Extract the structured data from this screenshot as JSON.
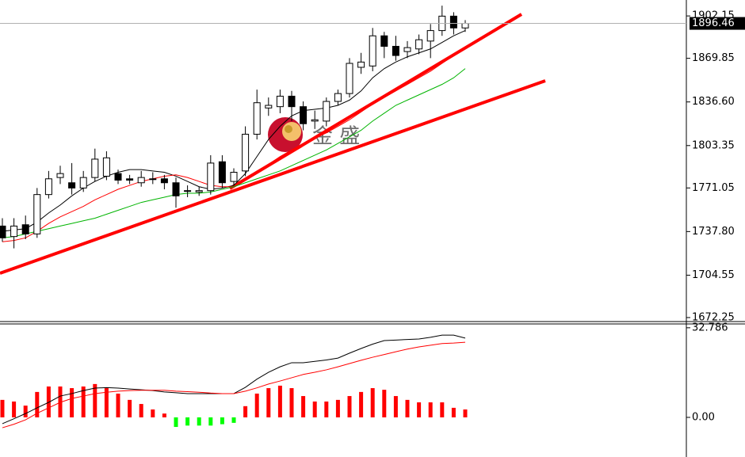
{
  "chart_data": [
    {
      "type": "candlestick",
      "open": [
        1742,
        1734,
        1743,
        1736,
        1766,
        1779,
        1775,
        1771,
        1779,
        1780,
        1782,
        1778,
        1775,
        1778,
        1778,
        1775,
        1769,
        1768,
        1769,
        1791,
        1776,
        1784,
        1812,
        1832,
        1833,
        1841,
        1833,
        1822,
        1822,
        1837,
        1843,
        1863,
        1864,
        1887,
        1879,
        1875,
        1877,
        1883,
        1891,
        1902,
        1893
      ],
      "high": [
        1748,
        1748,
        1750,
        1771,
        1784,
        1788,
        1790,
        1784,
        1801,
        1799,
        1785,
        1781,
        1784,
        1783,
        1781,
        1779,
        1773,
        1772,
        1796,
        1796,
        1786,
        1818,
        1846,
        1840,
        1846,
        1845,
        1837,
        1830,
        1840,
        1846,
        1870,
        1874,
        1893,
        1890,
        1887,
        1883,
        1888,
        1896,
        1910,
        1905,
        1899
      ],
      "low": [
        1730,
        1725,
        1732,
        1733,
        1763,
        1774,
        1766,
        1768,
        1776,
        1777,
        1774,
        1774,
        1772,
        1774,
        1770,
        1756,
        1764,
        1765,
        1766,
        1771,
        1773,
        1780,
        1808,
        1826,
        1828,
        1822,
        1815,
        1816,
        1818,
        1834,
        1840,
        1858,
        1860,
        1870,
        1868,
        1870,
        1873,
        1870,
        1887,
        1888,
        1890
      ],
      "close": [
        1733,
        1742,
        1736,
        1766,
        1778,
        1782,
        1771,
        1779,
        1793,
        1794,
        1777,
        1777,
        1779,
        1778,
        1775,
        1765,
        1769,
        1769,
        1790,
        1775,
        1783,
        1812,
        1836,
        1834,
        1841,
        1833,
        1820,
        1823,
        1837,
        1843,
        1866,
        1867,
        1887,
        1879,
        1872,
        1878,
        1884,
        1891,
        1902,
        1893,
        1896.46
      ],
      "up_color": "#ffffff",
      "down_color": "#000000",
      "series": [
        {
          "color": "#000000",
          "values": [
            1738,
            1739,
            1740,
            1745,
            1752,
            1758,
            1765,
            1771,
            1776,
            1780,
            1783,
            1785,
            1785,
            1784,
            1783,
            1780,
            1776,
            1772,
            1770,
            1771,
            1773,
            1782,
            1795,
            1808,
            1818,
            1826,
            1830,
            1831,
            1832,
            1834,
            1838,
            1845,
            1855,
            1862,
            1867,
            1871,
            1874,
            1877,
            1882,
            1887,
            1891
          ]
        },
        {
          "color": "#ff0000",
          "values": [
            1730,
            1731,
            1733,
            1738,
            1744,
            1749,
            1753,
            1757,
            1762,
            1766,
            1770,
            1773,
            1776,
            1778,
            1780,
            1781,
            1779,
            1776,
            1773,
            1772,
            1772,
            1777,
            1783,
            1789,
            1795,
            1800,
            1805,
            1809,
            1813,
            1818,
            1823,
            1829,
            1835,
            1840,
            1845,
            1850,
            1855,
            1860,
            1866,
            1872,
            1877
          ]
        },
        {
          "color": "#00b400",
          "values": [
            1733,
            1734,
            1736,
            1738,
            1740,
            1742,
            1744,
            1746,
            1748,
            1751,
            1754,
            1757,
            1760,
            1762,
            1764,
            1766,
            1767,
            1767,
            1768,
            1770,
            1772,
            1775,
            1778,
            1781,
            1784,
            1788,
            1792,
            1796,
            1800,
            1805,
            1810,
            1815,
            1822,
            1828,
            1834,
            1838,
            1842,
            1846,
            1850,
            1855,
            1862
          ]
        }
      ],
      "ylim": [
        1669.8,
        1914.3
      ],
      "yticks": [
        {
          "value": 1902.15,
          "label": "1902.15"
        },
        {
          "value": 1869.85,
          "label": "1869.85"
        },
        {
          "value": 1836.6,
          "label": "1836.60"
        },
        {
          "value": 1803.35,
          "label": "1803.35"
        },
        {
          "value": 1771.05,
          "label": "1771.05"
        },
        {
          "value": 1737.8,
          "label": "1737.80"
        },
        {
          "value": 1704.55,
          "label": "1704.55"
        },
        {
          "value": 1672.25,
          "label": "1672.25"
        }
      ],
      "last_price": 1896.46,
      "watermark": "金 盛"
    },
    {
      "type": "macd",
      "values": [
        6.4,
        5.8,
        4.3,
        9.3,
        11.3,
        11.3,
        10.7,
        11.3,
        12.2,
        10.7,
        8.7,
        6.4,
        4.9,
        2.9,
        1.4,
        -3.5,
        -3,
        -3,
        -3,
        -2.5,
        -2,
        4.1,
        8.7,
        10.7,
        11.6,
        10.7,
        7.8,
        5.8,
        5.8,
        6.4,
        7.8,
        9.3,
        10.7,
        10.1,
        7.8,
        6.4,
        5.5,
        5.5,
        5.5,
        3.5,
        2.9
      ],
      "up_color": "#ff0000",
      "down_color": "#00ff00",
      "series": [
        {
          "color": "#000000",
          "values": [
            -2.3,
            -0.5,
            1.4,
            3.5,
            5.5,
            7.8,
            8.7,
            9.8,
            10.7,
            10.9,
            10.7,
            10.4,
            10.1,
            9.8,
            9.3,
            9.0,
            8.7,
            8.7,
            8.7,
            8.7,
            8.7,
            11,
            14,
            16.5,
            18.5,
            20,
            20,
            20.5,
            21,
            21.7,
            23.5,
            25.2,
            26.8,
            28.1,
            28.3,
            28.5,
            28.7,
            29.3,
            30.1,
            30.1,
            29
          ]
        },
        {
          "color": "#ff0000",
          "values": [
            -3.8,
            -2.5,
            -0.9,
            1.5,
            3.5,
            5.5,
            6.9,
            7.8,
            8.7,
            9.2,
            9.6,
            9.8,
            9.9,
            9.9,
            9.9,
            9.6,
            9.4,
            9.2,
            8.9,
            8.7,
            8.7,
            9.6,
            10.8,
            12.2,
            13.3,
            14.5,
            15.7,
            16.5,
            17.4,
            18.5,
            19.7,
            20.9,
            22,
            23,
            24,
            25,
            25.8,
            26.4,
            27,
            27.2,
            27.5
          ]
        }
      ],
      "ylim": [
        -14.5,
        33.9
      ],
      "yticks": [
        32.786,
        {
          "value": 0,
          "label": "0.00"
        }
      ]
    }
  ]
}
